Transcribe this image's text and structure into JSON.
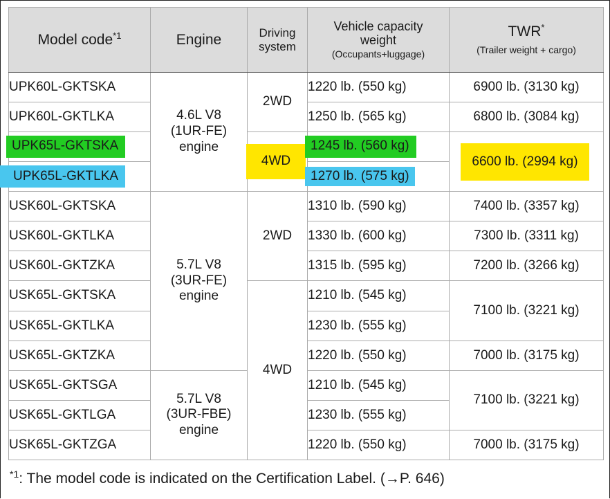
{
  "header": {
    "model": "Model code",
    "model_mark": "*1",
    "engine": "Engine",
    "driving_line1": "Driving",
    "driving_line2": "system",
    "capacity_line1": "Vehicle capacity",
    "capacity_line2": "weight",
    "capacity_sub": "(Occupants+luggage)",
    "twr": "TWR",
    "twr_mark": "*",
    "twr_sub": "(Trailer weight + cargo)"
  },
  "engines": {
    "e1": [
      "4.6L V8",
      "(1UR-FE)",
      "engine"
    ],
    "e2": [
      "5.7L V8",
      "(3UR-FE)",
      "engine"
    ],
    "e3": [
      "5.7L V8",
      "(3UR-FBE)",
      "engine"
    ]
  },
  "drive": {
    "d1": "2WD",
    "d2": "4WD",
    "d3": "2WD",
    "d4": "4WD"
  },
  "rows": [
    {
      "model": "UPK60L-GKTSKA",
      "capacity": "1220 lb. (550 kg)"
    },
    {
      "model": "UPK60L-GKTLKA",
      "capacity": "1250 lb. (565 kg)"
    },
    {
      "model": "UPK65L-GKTSKA",
      "capacity": "1245 lb. (560 kg)"
    },
    {
      "model": "UPK65L-GKTLKA",
      "capacity": "1270 lb. (575 kg)"
    },
    {
      "model": "USK60L-GKTSKA",
      "capacity": "1310 lb. (590 kg)"
    },
    {
      "model": "USK60L-GKTLKA",
      "capacity": "1330 lb. (600 kg)"
    },
    {
      "model": "USK60L-GKTZKA",
      "capacity": "1315 lb. (595 kg)"
    },
    {
      "model": "USK65L-GKTSKA",
      "capacity": "1210 lb. (545 kg)"
    },
    {
      "model": "USK65L-GKTLKA",
      "capacity": "1230 lb. (555 kg)"
    },
    {
      "model": "USK65L-GKTZKA",
      "capacity": "1220 lb. (550 kg)"
    },
    {
      "model": "USK65L-GKTSGA",
      "capacity": "1210 lb. (545 kg)"
    },
    {
      "model": "USK65L-GKTLGA",
      "capacity": "1230 lb. (555 kg)"
    },
    {
      "model": "USK65L-GKTZGA",
      "capacity": "1220 lb. (550 kg)"
    }
  ],
  "twr": {
    "t1": "6900 lb. (3130 kg)",
    "t2": "6800 lb. (3084 kg)",
    "t3": "6600 lb. (2994 kg)",
    "t4": "7400 lb. (3357 kg)",
    "t5": "7300 lb. (3311 kg)",
    "t6": "7200 lb. (3266 kg)",
    "t7": "7100 lb. (3221 kg)",
    "t8": "7000 lb. (3175 kg)",
    "t9": "7100 lb. (3221 kg)",
    "t10": "7000 lb. (3175 kg)"
  },
  "footnote": {
    "mark": "*1",
    "text": ": The model code is indicated on the Certification Label. (→P. 646)"
  },
  "colors": {
    "green": "#22cc22",
    "blue": "#49c6ee",
    "yellow": "#ffe600",
    "header_bg": "#dcdcdc"
  }
}
